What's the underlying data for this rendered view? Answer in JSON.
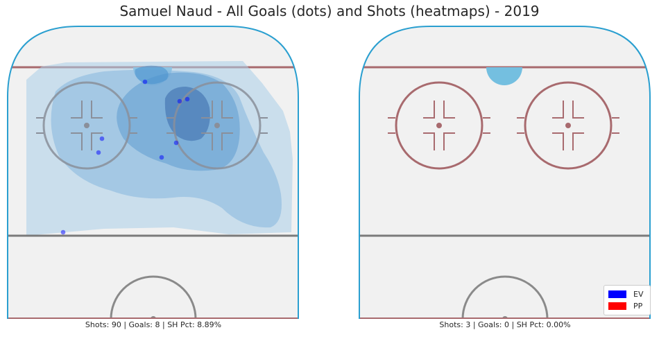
{
  "title": "Samuel Naud - All Goals (dots) and Shots (heatmaps) - 2019",
  "chart_data": [
    {
      "type": "scatter",
      "panel": "left",
      "caption": "Shots: 90 | Goals: 8 | SH Pct: 8.89%",
      "heatmap": "shot density (KDE contours)",
      "series": [
        {
          "name": "EV",
          "color": "#0000ff",
          "points": [
            [
              209,
              118
            ],
            [
              259,
              146
            ],
            [
              270,
              143
            ],
            [
              147,
              200
            ],
            [
              142,
              220
            ],
            [
              254,
              206
            ],
            [
              233,
              227
            ],
            [
              91,
              335
            ]
          ]
        },
        {
          "name": "PP",
          "color": "#ff0000",
          "points": []
        }
      ]
    },
    {
      "type": "scatter",
      "panel": "right",
      "caption": "Shots: 3 | Goals: 0 | SH Pct: 0.00%",
      "heatmap": "shot density (KDE contours)",
      "series": [
        {
          "name": "EV",
          "color": "#0000ff",
          "points": []
        },
        {
          "name": "PP",
          "color": "#ff0000",
          "points": []
        }
      ]
    }
  ],
  "legend": {
    "items": [
      {
        "label": "EV",
        "color": "#0000ff"
      },
      {
        "label": "PP",
        "color": "#ff0000"
      }
    ]
  },
  "colors": {
    "rink_board": "#2a9fd0",
    "ice": "#f1f1f1",
    "goal_line": "#a86a6e",
    "circle_left_panel": "#8a8f9a",
    "circle_right_panel": "#a86a6e",
    "blue_line": "#7a7a7a",
    "heat_light": "#a9cde8",
    "heat_mid": "#6aa3d3",
    "heat_dark": "#3f6fae"
  }
}
